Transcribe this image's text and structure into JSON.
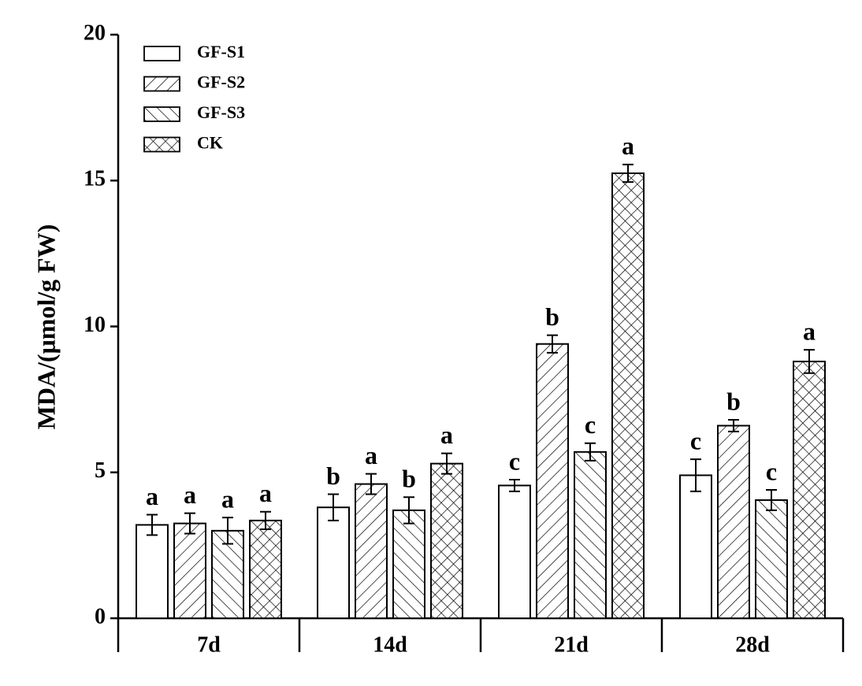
{
  "chart_data": {
    "type": "bar",
    "y_label": "MDA/(μmol/g FW)",
    "categories": [
      "7d",
      "14d",
      "21d",
      "28d"
    ],
    "series": [
      {
        "name": "GF-S1",
        "color": "#ffffff",
        "hatch": "none",
        "values": [
          3.2,
          3.8,
          4.55,
          4.9
        ],
        "errors": [
          0.35,
          0.45,
          0.2,
          0.55
        ],
        "labels": [
          "a",
          "b",
          "c",
          "c"
        ]
      },
      {
        "name": "GF-S2",
        "color": "#ffffff",
        "hatch": "forward",
        "values": [
          3.25,
          4.6,
          9.4,
          6.6
        ],
        "errors": [
          0.35,
          0.35,
          0.3,
          0.2
        ],
        "labels": [
          "a",
          "a",
          "b",
          "b"
        ]
      },
      {
        "name": "GF-S3",
        "color": "#ffffff",
        "hatch": "backward",
        "values": [
          3.0,
          3.7,
          5.7,
          4.05
        ],
        "errors": [
          0.45,
          0.45,
          0.3,
          0.35
        ],
        "labels": [
          "a",
          "b",
          "c",
          "c"
        ]
      },
      {
        "name": "CK",
        "color": "#ffffff",
        "hatch": "cross",
        "values": [
          3.35,
          5.3,
          15.25,
          8.8
        ],
        "errors": [
          0.3,
          0.35,
          0.3,
          0.4
        ],
        "labels": [
          "a",
          "a",
          "a",
          "a"
        ]
      }
    ],
    "ylim": [
      0,
      20
    ],
    "yticks": [
      0,
      5,
      10,
      15,
      20
    ],
    "legend": "top-left"
  }
}
